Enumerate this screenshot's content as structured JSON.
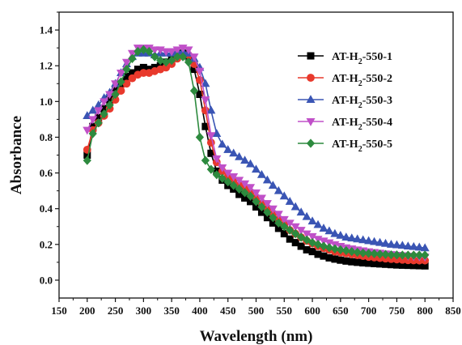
{
  "chart_data": {
    "type": "line",
    "xlabel": "Wavelength (nm)",
    "ylabel": "Absorbance",
    "xlim": [
      150,
      850
    ],
    "ylim": [
      -0.1,
      1.5
    ],
    "xticks": [
      150,
      200,
      250,
      300,
      350,
      400,
      450,
      500,
      550,
      600,
      650,
      700,
      750,
      800,
      850
    ],
    "yticks": [
      0.0,
      0.2,
      0.4,
      0.6,
      0.8,
      1.0,
      1.2,
      1.4
    ],
    "ytick_labels": [
      "0.0",
      "0.2",
      "0.4",
      "0.6",
      "0.8",
      "1.0",
      "1.2",
      "1.4"
    ],
    "grid": false,
    "legend_position": "top-right",
    "x": [
      200,
      210,
      220,
      230,
      240,
      250,
      260,
      270,
      280,
      290,
      300,
      310,
      320,
      330,
      340,
      350,
      360,
      370,
      380,
      390,
      400,
      410,
      420,
      430,
      440,
      450,
      460,
      470,
      480,
      490,
      500,
      510,
      520,
      530,
      540,
      550,
      560,
      570,
      580,
      590,
      600,
      610,
      620,
      630,
      640,
      650,
      660,
      670,
      680,
      690,
      700,
      710,
      720,
      730,
      740,
      750,
      760,
      770,
      780,
      790,
      800
    ],
    "series": [
      {
        "name": "AT-H2-550-1",
        "legend_main": "AT-H",
        "legend_sub": "2",
        "legend_rest": "-550-1",
        "color": "#000000",
        "marker": "square",
        "values": [
          0.7,
          0.86,
          0.91,
          0.96,
          1.01,
          1.06,
          1.1,
          1.14,
          1.16,
          1.18,
          1.19,
          1.18,
          1.19,
          1.2,
          1.22,
          1.24,
          1.26,
          1.27,
          1.25,
          1.18,
          1.04,
          0.86,
          0.71,
          0.61,
          0.56,
          0.53,
          0.51,
          0.48,
          0.46,
          0.44,
          0.41,
          0.38,
          0.35,
          0.32,
          0.29,
          0.26,
          0.23,
          0.21,
          0.19,
          0.17,
          0.16,
          0.145,
          0.135,
          0.125,
          0.118,
          0.112,
          0.107,
          0.103,
          0.1,
          0.097,
          0.095,
          0.093,
          0.091,
          0.089,
          0.087,
          0.085,
          0.084,
          0.083,
          0.082,
          0.081,
          0.08
        ]
      },
      {
        "name": "AT-H2-550-2",
        "legend_main": "AT-H",
        "legend_sub": "2",
        "legend_rest": "-550-2",
        "color": "#e8392c",
        "marker": "circle",
        "values": [
          0.73,
          0.84,
          0.88,
          0.92,
          0.96,
          1.01,
          1.06,
          1.1,
          1.13,
          1.15,
          1.16,
          1.16,
          1.17,
          1.18,
          1.19,
          1.21,
          1.24,
          1.26,
          1.26,
          1.21,
          1.12,
          0.95,
          0.77,
          0.66,
          0.61,
          0.58,
          0.56,
          0.53,
          0.51,
          0.49,
          0.46,
          0.43,
          0.4,
          0.37,
          0.34,
          0.31,
          0.28,
          0.26,
          0.24,
          0.22,
          0.205,
          0.19,
          0.18,
          0.17,
          0.16,
          0.155,
          0.15,
          0.145,
          0.14,
          0.135,
          0.13,
          0.127,
          0.124,
          0.121,
          0.118,
          0.116,
          0.114,
          0.112,
          0.111,
          0.11,
          0.11
        ]
      },
      {
        "name": "AT-H2-550-3",
        "legend_main": "AT-H",
        "legend_sub": "2",
        "legend_rest": "-550-3",
        "color": "#3a55b4",
        "marker": "triangle-up",
        "values": [
          0.92,
          0.95,
          0.98,
          1.02,
          1.05,
          1.1,
          1.16,
          1.21,
          1.25,
          1.27,
          1.27,
          1.27,
          1.26,
          1.27,
          1.27,
          1.27,
          1.28,
          1.28,
          1.27,
          1.24,
          1.19,
          1.1,
          0.95,
          0.82,
          0.76,
          0.73,
          0.71,
          0.69,
          0.67,
          0.65,
          0.62,
          0.59,
          0.56,
          0.53,
          0.5,
          0.47,
          0.44,
          0.41,
          0.38,
          0.355,
          0.33,
          0.31,
          0.29,
          0.275,
          0.26,
          0.25,
          0.24,
          0.235,
          0.23,
          0.225,
          0.22,
          0.215,
          0.21,
          0.205,
          0.2,
          0.197,
          0.194,
          0.19,
          0.187,
          0.184,
          0.18
        ]
      },
      {
        "name": "AT-H2-550-4",
        "legend_main": "AT-H",
        "legend_sub": "2",
        "legend_rest": "-550-4",
        "color": "#c050c8",
        "marker": "triangle-down",
        "values": [
          0.84,
          0.9,
          0.95,
          1.0,
          1.04,
          1.1,
          1.16,
          1.22,
          1.27,
          1.3,
          1.3,
          1.3,
          1.29,
          1.29,
          1.28,
          1.28,
          1.29,
          1.3,
          1.29,
          1.25,
          1.17,
          1.01,
          0.81,
          0.68,
          0.63,
          0.6,
          0.58,
          0.56,
          0.54,
          0.52,
          0.49,
          0.46,
          0.43,
          0.4,
          0.37,
          0.34,
          0.32,
          0.3,
          0.28,
          0.26,
          0.245,
          0.23,
          0.22,
          0.21,
          0.2,
          0.19,
          0.182,
          0.176,
          0.17,
          0.165,
          0.16,
          0.156,
          0.152,
          0.148,
          0.144,
          0.14,
          0.138,
          0.135,
          0.133,
          0.131,
          0.13
        ]
      },
      {
        "name": "AT-H2-550-5",
        "legend_main": "AT-H",
        "legend_sub": "2",
        "legend_rest": "-550-5",
        "color": "#2d8a3e",
        "marker": "diamond",
        "values": [
          0.67,
          0.82,
          0.88,
          0.93,
          0.98,
          1.04,
          1.11,
          1.18,
          1.24,
          1.28,
          1.29,
          1.28,
          1.25,
          1.23,
          1.22,
          1.23,
          1.25,
          1.25,
          1.22,
          1.06,
          0.8,
          0.67,
          0.62,
          0.59,
          0.57,
          0.55,
          0.53,
          0.51,
          0.49,
          0.47,
          0.44,
          0.41,
          0.38,
          0.35,
          0.32,
          0.3,
          0.28,
          0.26,
          0.24,
          0.225,
          0.21,
          0.2,
          0.19,
          0.182,
          0.175,
          0.17,
          0.165,
          0.16,
          0.156,
          0.152,
          0.15,
          0.148,
          0.146,
          0.144,
          0.142,
          0.141,
          0.14,
          0.14,
          0.14,
          0.14,
          0.14
        ]
      }
    ]
  }
}
